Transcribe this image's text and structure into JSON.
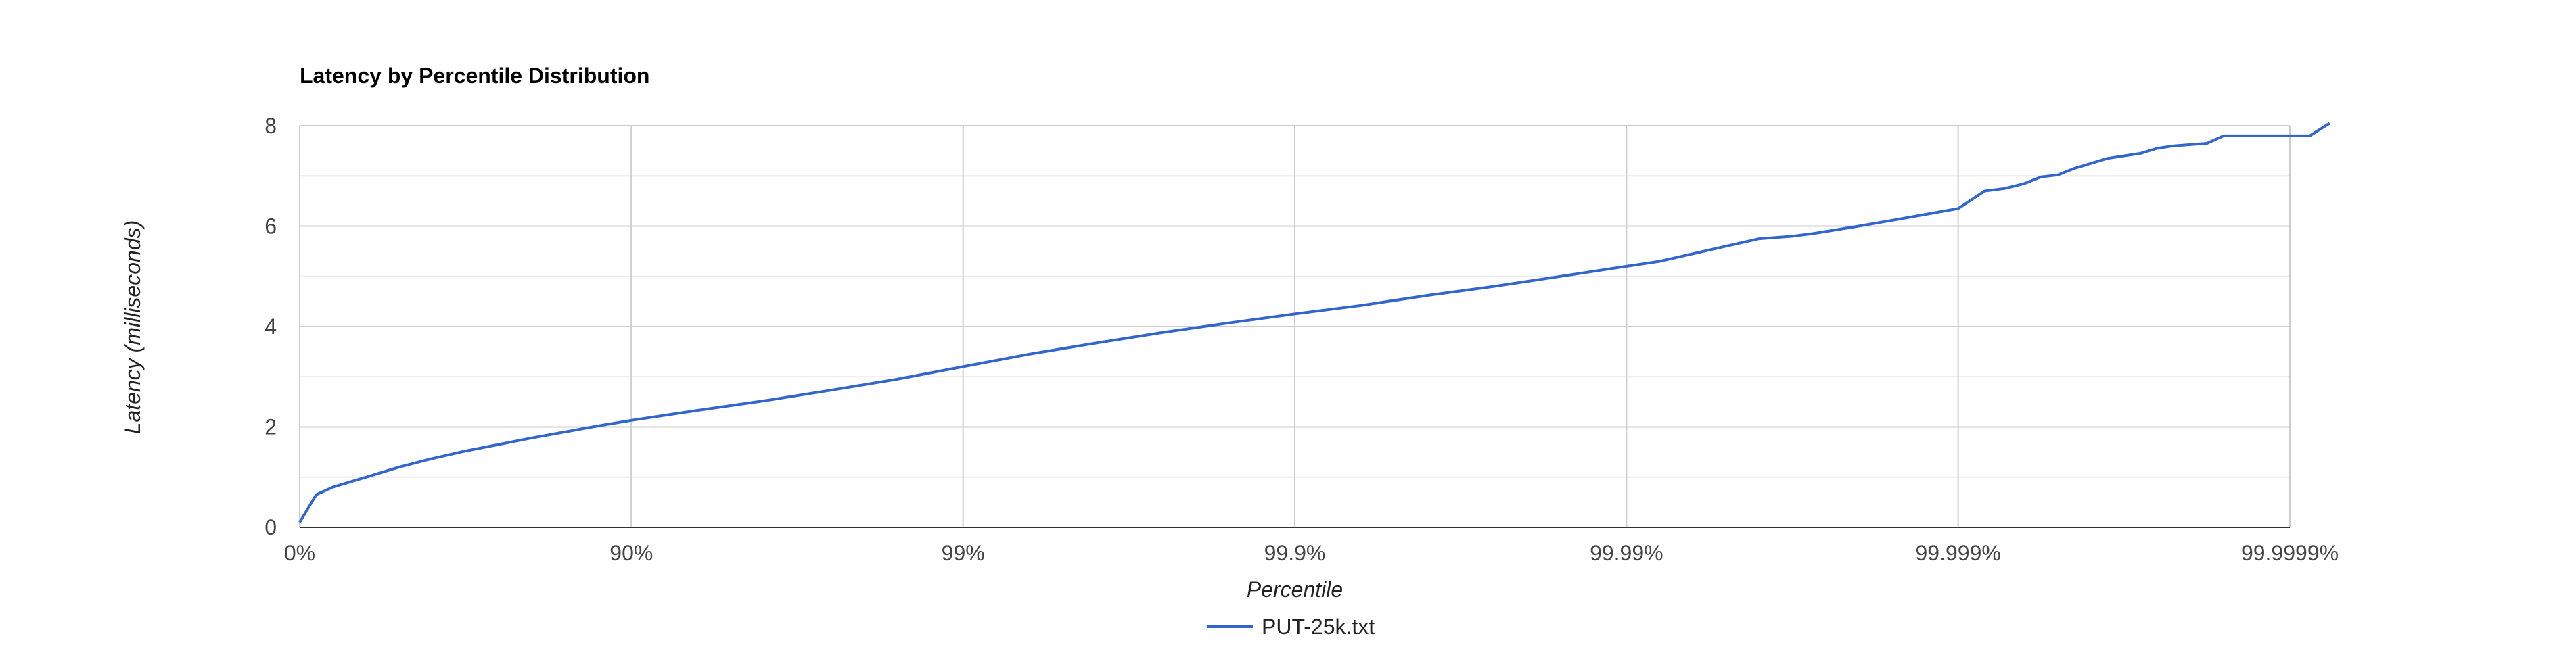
{
  "chart_data": {
    "type": "line",
    "title": "Latency by Percentile Distribution",
    "xlabel": "Percentile",
    "ylabel": "Latency (milliseconds)",
    "x_tick_labels": [
      "0%",
      "90%",
      "99%",
      "99.9%",
      "99.99%",
      "99.999%",
      "99.9999%"
    ],
    "y_ticks": [
      0,
      2,
      4,
      6,
      8
    ],
    "ylim": [
      0,
      8
    ],
    "xlim": [
      0,
      6
    ],
    "x_scale_note": "x is measured in decades of 1/(1-percentile); tick i corresponds to x = i",
    "grid": true,
    "legend_position": "bottom",
    "series": [
      {
        "name": "PUT-25k.txt",
        "color": "#3366cc",
        "x": [
          0.0,
          0.05,
          0.1,
          0.15,
          0.2,
          0.3,
          0.4,
          0.5,
          0.6,
          0.7,
          0.8,
          0.9,
          1.0,
          1.2,
          1.4,
          1.6,
          1.8,
          2.0,
          2.2,
          2.4,
          2.6,
          2.8,
          3.0,
          3.2,
          3.4,
          3.6,
          3.8,
          4.0,
          4.1,
          4.2,
          4.3,
          4.4,
          4.5,
          4.56,
          4.7,
          4.83,
          5.0,
          5.08,
          5.14,
          5.2,
          5.25,
          5.3,
          5.35,
          5.45,
          5.55,
          5.6,
          5.65,
          5.75,
          5.8,
          5.9,
          5.95,
          6.0,
          6.06,
          6.12
        ],
        "values": [
          0.1,
          0.65,
          0.8,
          0.9,
          1.0,
          1.2,
          1.37,
          1.52,
          1.65,
          1.78,
          1.9,
          2.02,
          2.13,
          2.33,
          2.52,
          2.73,
          2.95,
          3.2,
          3.45,
          3.67,
          3.88,
          4.07,
          4.25,
          4.42,
          4.62,
          4.8,
          5.0,
          5.2,
          5.3,
          5.45,
          5.6,
          5.75,
          5.8,
          5.85,
          6.0,
          6.15,
          6.35,
          6.7,
          6.75,
          6.85,
          6.98,
          7.02,
          7.15,
          7.35,
          7.45,
          7.55,
          7.6,
          7.65,
          7.8,
          7.8,
          7.8,
          7.8,
          7.8,
          8.05
        ]
      }
    ]
  }
}
